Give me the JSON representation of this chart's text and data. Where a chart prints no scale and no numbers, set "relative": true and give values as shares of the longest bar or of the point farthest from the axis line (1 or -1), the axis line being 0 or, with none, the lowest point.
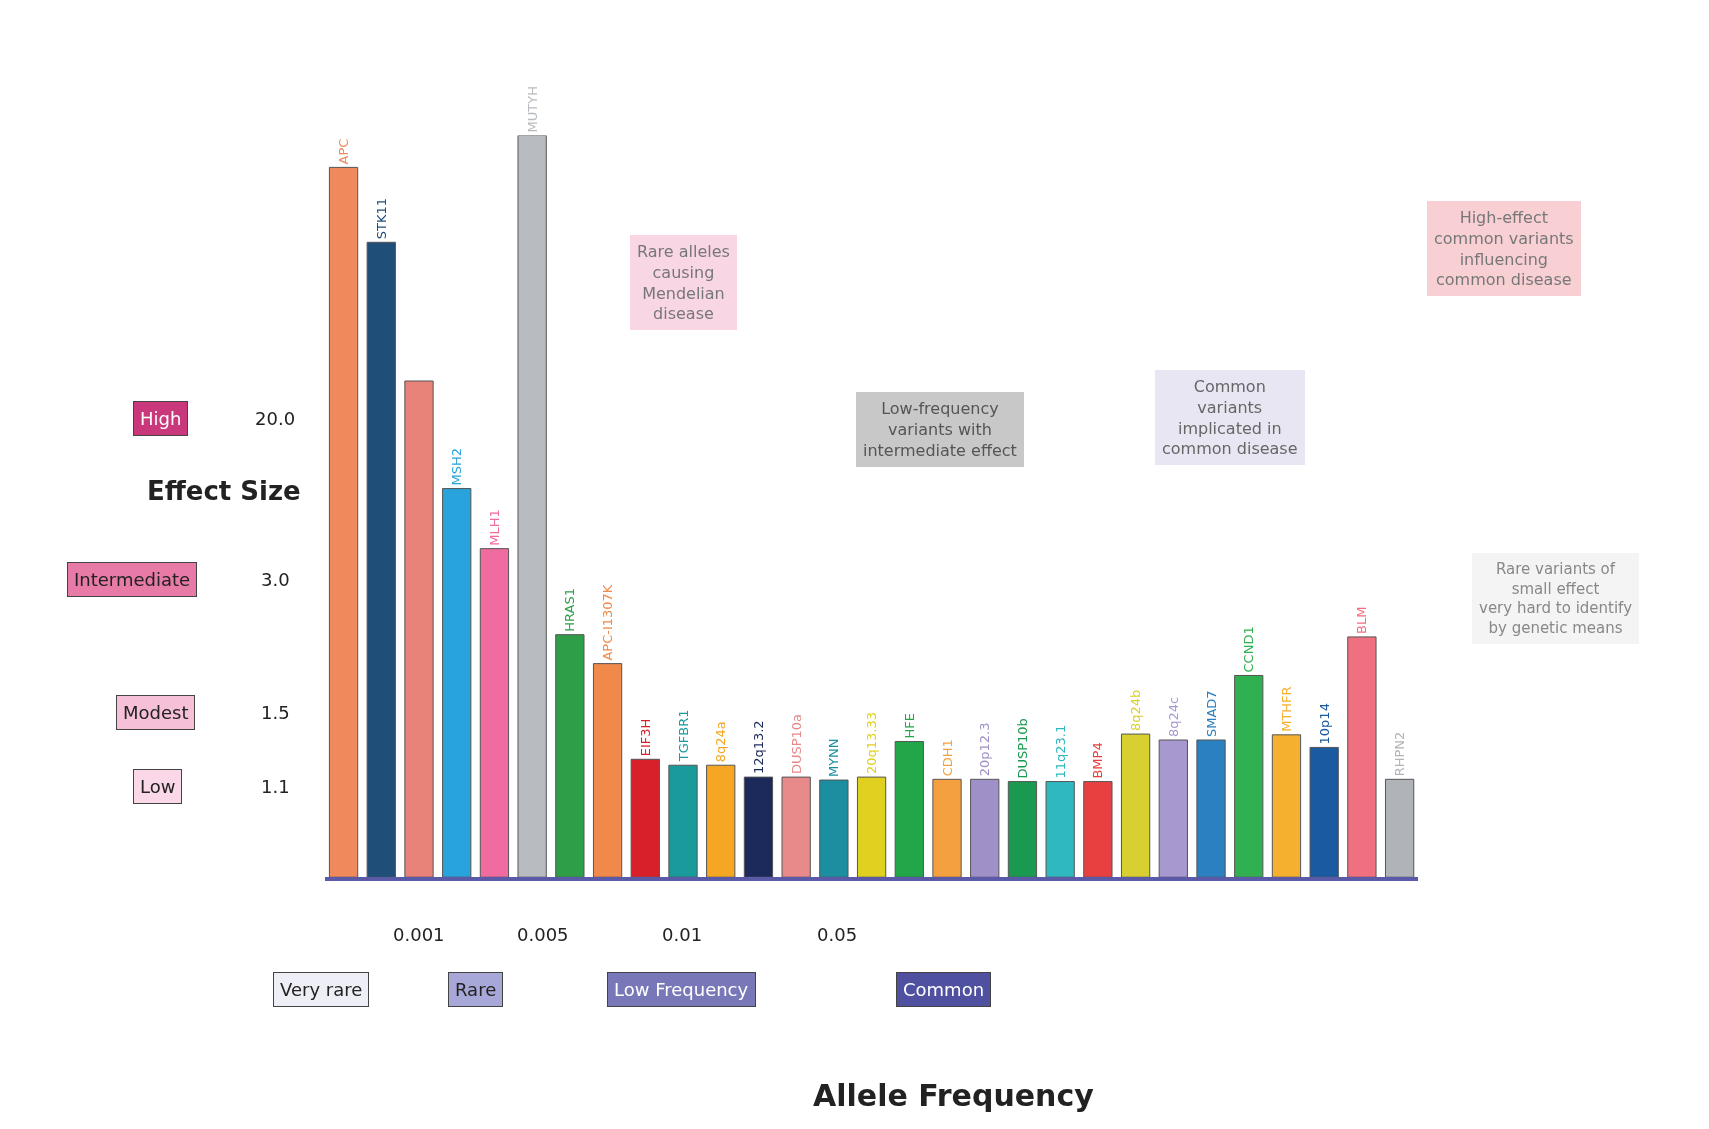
{
  "chart_data": {
    "type": "bar",
    "relative": true,
    "ylabel": "Effect Size",
    "categories": [
      "APC",
      "STK11",
      null,
      "MSH2",
      "MLH1",
      "MUTYH",
      "HRAS1",
      "APC-I1307K",
      "EIF3H",
      "TGFBR1",
      "8q24a",
      "12q13.2",
      "DUSP10a",
      "MYNN",
      "20q13.33",
      "HFE",
      "CDH1",
      "20p12.3",
      "DUSP10b",
      "11q23.1",
      "BMP4",
      "8q24b",
      "8q24c",
      "SMAD7",
      "CCND1",
      "MTHFR",
      "10p14",
      "BLM",
      "RHPN2"
    ],
    "values": [
      0.957,
      0.856,
      0.669,
      0.524,
      0.443,
      1,
      0.327,
      0.288,
      0.159,
      0.151,
      0.151,
      0.135,
      0.135,
      0.131,
      0.135,
      0.183,
      0.132,
      0.132,
      0.129,
      0.129,
      0.129,
      0.193,
      0.185,
      0.185,
      0.272,
      0.192,
      0.175,
      0.324,
      0.132
    ],
    "colors": [
      "#f08a5d",
      "#1f4e79",
      "#e8837a",
      "#29a3dc",
      "#f06ba0",
      "#b8bcc0",
      "#2e9e48",
      "#f08a4b",
      "#d7202a",
      "#1a9a9a",
      "#f5a623",
      "#1b2a5a",
      "#e88a8a",
      "#1b8fa0",
      "#e0d020",
      "#22a64a",
      "#f5a040",
      "#a090c8",
      "#1a9a50",
      "#30b8c0",
      "#e84040",
      "#d8d030",
      "#a898d0",
      "#2a80c0",
      "#30b050",
      "#f5b030",
      "#1a5aa0",
      "#f07080",
      "#b0b4b8"
    ],
    "annotations": [
      "High",
      "20.0",
      "Intermediate",
      "3.0",
      "Modest",
      "1.5",
      "Low",
      "1.1",
      "0.001",
      "0.005",
      "0.01",
      "0.05",
      "Very rare",
      "Rare",
      "Low Frequency",
      "Common",
      "Rare alleles\ncausing\nMendelian\ndisease",
      "Low-frequency\nvariants with\nintermediate effect",
      "Common\nvariants\nimplicated in\ncommon disease",
      "High-effect\ncommon variants\ninfluencing\ncommon disease",
      "Rare variants of\nsmall effect\nvery hard to identify\nby genetic means",
      "Allele Frequency"
    ]
  }
}
